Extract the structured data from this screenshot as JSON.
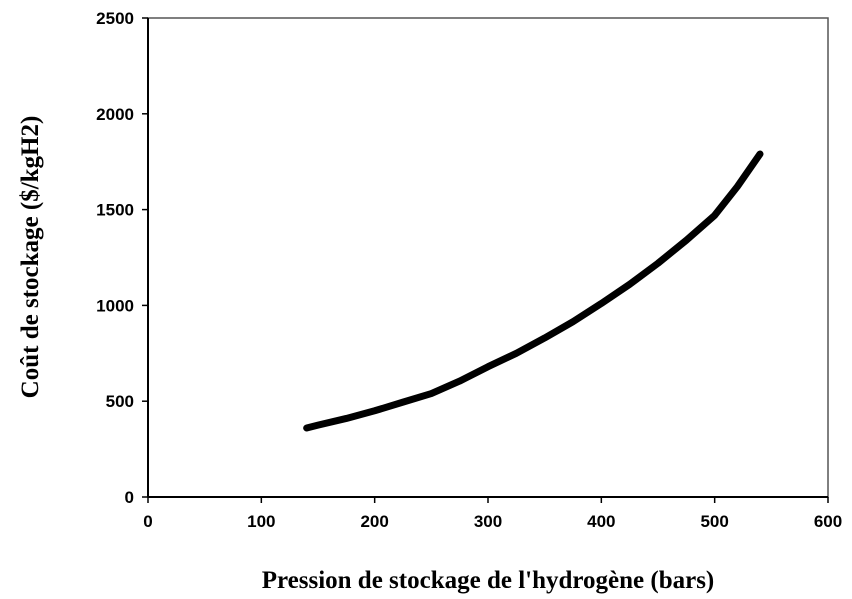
{
  "chart_data": {
    "type": "line",
    "xlabel": "Pression de stockage de l'hydrogène (bars)",
    "ylabel": "Coût de stockage ($/kgH2)",
    "x": [
      140,
      150,
      175,
      200,
      225,
      250,
      275,
      300,
      325,
      350,
      375,
      400,
      425,
      450,
      475,
      500,
      520,
      540
    ],
    "series": [
      {
        "name": "Coût",
        "color": "#000000",
        "values": [
          360,
          375,
          410,
          450,
          495,
          540,
          605,
          680,
          750,
          830,
          915,
          1010,
          1110,
          1220,
          1340,
          1470,
          1620,
          1790
        ]
      }
    ],
    "xlim": [
      0,
      600
    ],
    "xticks": [
      0,
      100,
      200,
      300,
      400,
      500,
      600
    ],
    "ylim": [
      0,
      2500
    ],
    "yticks": [
      0,
      500,
      1000,
      1500,
      2000,
      2500
    ]
  }
}
